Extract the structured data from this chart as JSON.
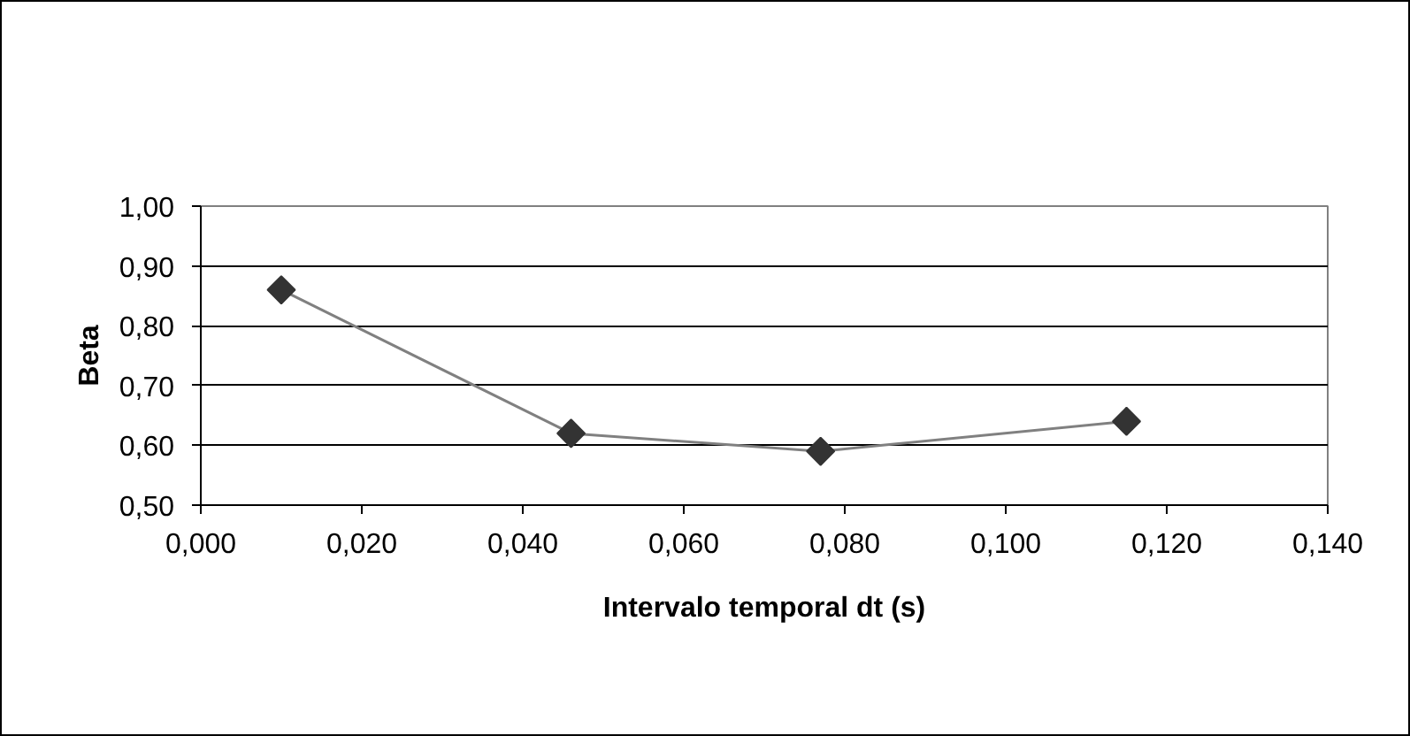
{
  "chart_data": {
    "type": "line",
    "xlabel": "Intervalo temporal dt (s)",
    "ylabel": "Beta",
    "x": [
      0.01,
      0.046,
      0.077,
      0.115
    ],
    "series": [
      {
        "color": "#808080",
        "values": [
          0.86,
          0.62,
          0.59,
          0.64
        ]
      }
    ],
    "marker": "diamond",
    "line_style": "solid",
    "grid": "y",
    "xlim": [
      0,
      0.14
    ],
    "xticks": [
      {
        "value": 0,
        "label": "0,000"
      },
      {
        "value": 0.02,
        "label": "0,020"
      },
      {
        "value": 0.04,
        "label": "0,040"
      },
      {
        "value": 0.06,
        "label": "0,060"
      },
      {
        "value": 0.08,
        "label": "0,080"
      },
      {
        "value": 0.1,
        "label": "0,100"
      },
      {
        "value": 0.12,
        "label": "0,120"
      },
      {
        "value": 0.14,
        "label": "0,140"
      }
    ],
    "ylim": [
      0.5,
      1.0
    ],
    "yticks": [
      {
        "value": 0.5,
        "label": "0,50"
      },
      {
        "value": 0.6,
        "label": "0,60"
      },
      {
        "value": 0.7,
        "label": "0,70"
      },
      {
        "value": 0.8,
        "label": "0,80"
      },
      {
        "value": 0.9,
        "label": "0,90"
      },
      {
        "value": 1.0,
        "label": "1,00"
      }
    ]
  }
}
